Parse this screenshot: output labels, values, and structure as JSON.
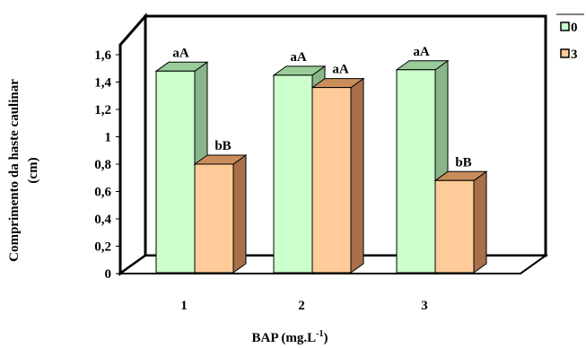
{
  "chart_data": {
    "type": "bar",
    "style": "3d-clustered-column",
    "title": "",
    "xlabel": "BAP (mg.L",
    "xlabel_superscript": "-1",
    "xlabel_close": ")",
    "ylabel": "Comprimento da haste caulinar",
    "ylabel_unit": "(cm)",
    "categories": [
      "1",
      "2",
      "3"
    ],
    "ylim": [
      0,
      1.6
    ],
    "yticks": [
      "0",
      "0,2",
      "0,4",
      "0,6",
      "0,8",
      "1",
      "1,2",
      "1,4",
      "1,6"
    ],
    "grid": false,
    "legend_position": "top-right",
    "series": [
      {
        "name": "0",
        "values": [
          1.48,
          1.45,
          1.49
        ],
        "labels": [
          "aA",
          "aA",
          "aA"
        ],
        "color": "#ccffcc",
        "side_color": "#8ab58a",
        "top_color": "#99cc99"
      },
      {
        "name": "3",
        "values": [
          0.8,
          1.36,
          0.68
        ],
        "labels": [
          "bB",
          "aA",
          "bB"
        ],
        "color": "#ffcc99",
        "side_color": "#a8704a",
        "top_color": "#c98d5c"
      }
    ]
  }
}
